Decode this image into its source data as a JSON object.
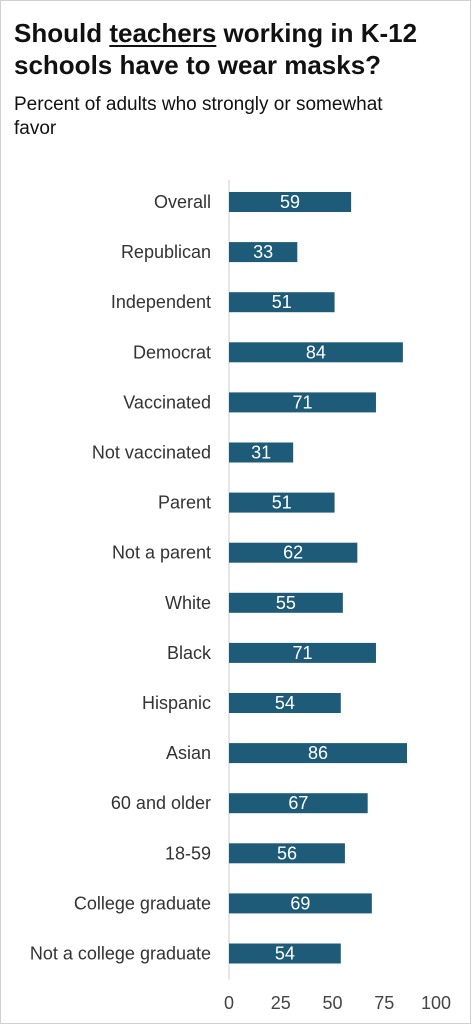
{
  "title": {
    "before": "Should ",
    "underlined": "teachers",
    "after": " working in K-12 schools have to wear masks?"
  },
  "subtitle": "Percent of adults who strongly or somewhat favor",
  "colors": {
    "bar": "#1e5b78",
    "axis": "#cccccc",
    "label": "#333333",
    "value_text": "#ffffff"
  },
  "chart_data": {
    "type": "bar",
    "orientation": "horizontal",
    "categories": [
      "Overall",
      "Republican",
      "Independent",
      "Democrat",
      "Vaccinated",
      "Not vaccinated",
      "Parent",
      "Not a parent",
      "White",
      "Black",
      "Hispanic",
      "Asian",
      "60 and older",
      "18-59",
      "College graduate",
      "Not a college graduate"
    ],
    "values": [
      59,
      33,
      51,
      84,
      71,
      31,
      51,
      62,
      55,
      71,
      54,
      86,
      67,
      56,
      69,
      54
    ],
    "xlim": [
      0,
      100
    ],
    "xticks": [
      0,
      25,
      50,
      75,
      100
    ],
    "data_labels": true,
    "grid": false
  }
}
